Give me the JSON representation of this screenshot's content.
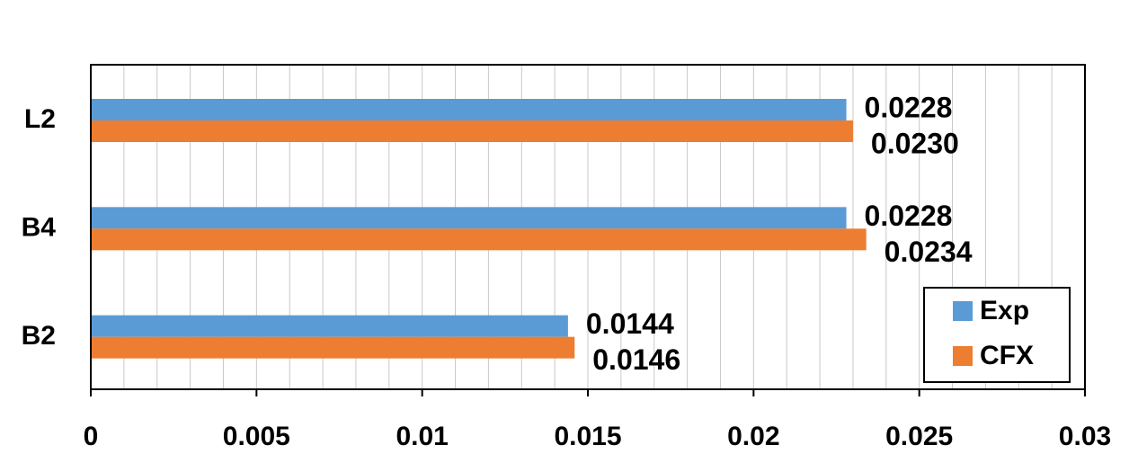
{
  "chart_data": {
    "type": "bar",
    "orientation": "horizontal",
    "categories": [
      "L2",
      "B4",
      "B2"
    ],
    "series": [
      {
        "name": "Exp",
        "color": "#5b9bd5",
        "values": [
          0.0228,
          0.0228,
          0.0144
        ],
        "value_labels": [
          "0.0228",
          "0.0228",
          "0.0144"
        ]
      },
      {
        "name": "CFX",
        "color": "#ed7d31",
        "values": [
          0.023,
          0.0234,
          0.0146
        ],
        "value_labels": [
          "0.0230",
          "0.0234",
          "0.0146"
        ]
      }
    ],
    "xlim": [
      0,
      0.03
    ],
    "xticks": [
      0,
      0.005,
      0.01,
      0.015,
      0.02,
      0.025,
      0.03
    ],
    "xticks_minor": [
      0.001,
      0.002,
      0.003,
      0.004,
      0.006,
      0.007,
      0.008,
      0.009,
      0.011,
      0.012,
      0.013,
      0.014,
      0.016,
      0.017,
      0.018,
      0.019,
      0.021,
      0.022,
      0.023,
      0.024,
      0.026,
      0.027,
      0.028,
      0.029
    ],
    "grid": true,
    "legend": "lower right"
  }
}
